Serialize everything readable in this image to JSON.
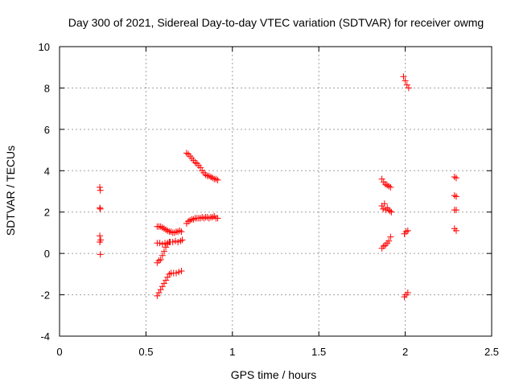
{
  "chart_data": {
    "type": "scatter",
    "title": "Day 300 of 2021, Sidereal Day-to-day VTEC variation (SDTVAR) for receiver owmg",
    "xlabel": "GPS time / hours",
    "ylabel": "SDTVAR / TECUs",
    "xlim": [
      0,
      2.5
    ],
    "ylim": [
      -4,
      10
    ],
    "xticks": [
      0,
      0.5,
      1,
      1.5,
      2,
      2.5
    ],
    "xtick_labels": [
      "0",
      "0.5",
      "1",
      "1.5",
      "2",
      "2.5"
    ],
    "yticks": [
      -4,
      -2,
      0,
      2,
      4,
      6,
      8,
      10
    ],
    "ytick_labels": [
      "-4",
      "-2",
      "0",
      "2",
      "4",
      "6",
      "8",
      "10"
    ],
    "grid": true,
    "marker": "+",
    "series": [
      {
        "name": "SDTVAR",
        "color": "#ff0000",
        "points": [
          [
            0.233,
            3.2
          ],
          [
            0.236,
            3.05
          ],
          [
            0.233,
            2.2
          ],
          [
            0.236,
            2.15
          ],
          [
            0.233,
            0.85
          ],
          [
            0.238,
            0.65
          ],
          [
            0.233,
            0.55
          ],
          [
            0.236,
            -0.05
          ],
          [
            0.565,
            1.3
          ],
          [
            0.575,
            1.3
          ],
          [
            0.585,
            1.3
          ],
          [
            0.595,
            1.25
          ],
          [
            0.605,
            1.2
          ],
          [
            0.615,
            1.15
          ],
          [
            0.625,
            1.1
          ],
          [
            0.635,
            1.05
          ],
          [
            0.645,
            1.05
          ],
          [
            0.655,
            1.0
          ],
          [
            0.665,
            1.0
          ],
          [
            0.675,
            1.05
          ],
          [
            0.685,
            1.05
          ],
          [
            0.695,
            1.1
          ],
          [
            0.705,
            1.05
          ],
          [
            0.565,
            0.5
          ],
          [
            0.58,
            0.5
          ],
          [
            0.595,
            0.45
          ],
          [
            0.61,
            0.5
          ],
          [
            0.625,
            0.5
          ],
          [
            0.64,
            0.55
          ],
          [
            0.655,
            0.55
          ],
          [
            0.67,
            0.6
          ],
          [
            0.685,
            0.55
          ],
          [
            0.7,
            0.6
          ],
          [
            0.71,
            0.65
          ],
          [
            0.565,
            -0.45
          ],
          [
            0.575,
            -0.35
          ],
          [
            0.585,
            -0.3
          ],
          [
            0.595,
            -0.1
          ],
          [
            0.605,
            0.1
          ],
          [
            0.615,
            0.3
          ],
          [
            0.625,
            0.45
          ],
          [
            0.635,
            0.55
          ],
          [
            0.565,
            -2.05
          ],
          [
            0.575,
            -1.9
          ],
          [
            0.585,
            -1.75
          ],
          [
            0.595,
            -1.6
          ],
          [
            0.605,
            -1.45
          ],
          [
            0.615,
            -1.3
          ],
          [
            0.625,
            -1.15
          ],
          [
            0.635,
            -1.0
          ],
          [
            0.645,
            -0.95
          ],
          [
            0.66,
            -0.95
          ],
          [
            0.675,
            -0.95
          ],
          [
            0.69,
            -0.9
          ],
          [
            0.705,
            -0.85
          ],
          [
            0.735,
            1.45
          ],
          [
            0.745,
            1.55
          ],
          [
            0.755,
            1.6
          ],
          [
            0.765,
            1.65
          ],
          [
            0.775,
            1.65
          ],
          [
            0.785,
            1.7
          ],
          [
            0.795,
            1.7
          ],
          [
            0.805,
            1.7
          ],
          [
            0.815,
            1.7
          ],
          [
            0.825,
            1.75
          ],
          [
            0.835,
            1.7
          ],
          [
            0.845,
            1.75
          ],
          [
            0.855,
            1.75
          ],
          [
            0.865,
            1.7
          ],
          [
            0.875,
            1.75
          ],
          [
            0.885,
            1.75
          ],
          [
            0.895,
            1.8
          ],
          [
            0.905,
            1.7
          ],
          [
            0.915,
            1.7
          ],
          [
            0.735,
            4.85
          ],
          [
            0.745,
            4.8
          ],
          [
            0.755,
            4.7
          ],
          [
            0.765,
            4.6
          ],
          [
            0.775,
            4.5
          ],
          [
            0.785,
            4.4
          ],
          [
            0.795,
            4.35
          ],
          [
            0.805,
            4.25
          ],
          [
            0.815,
            4.15
          ],
          [
            0.825,
            4.0
          ],
          [
            0.835,
            3.9
          ],
          [
            0.845,
            3.8
          ],
          [
            0.855,
            3.75
          ],
          [
            0.865,
            3.75
          ],
          [
            0.875,
            3.7
          ],
          [
            0.885,
            3.65
          ],
          [
            0.895,
            3.6
          ],
          [
            0.905,
            3.6
          ],
          [
            0.915,
            3.55
          ],
          [
            1.865,
            3.6
          ],
          [
            1.875,
            3.45
          ],
          [
            1.885,
            3.35
          ],
          [
            1.895,
            3.3
          ],
          [
            1.905,
            3.25
          ],
          [
            1.915,
            3.2
          ],
          [
            1.865,
            2.3
          ],
          [
            1.872,
            2.15
          ],
          [
            1.88,
            2.4
          ],
          [
            1.888,
            2.1
          ],
          [
            1.896,
            2.2
          ],
          [
            1.904,
            2.1
          ],
          [
            1.912,
            2.05
          ],
          [
            1.92,
            2.0
          ],
          [
            1.865,
            0.25
          ],
          [
            1.875,
            0.35
          ],
          [
            1.885,
            0.4
          ],
          [
            1.895,
            0.5
          ],
          [
            1.905,
            0.6
          ],
          [
            1.915,
            0.8
          ],
          [
            1.99,
            8.55
          ],
          [
            2.0,
            8.35
          ],
          [
            2.01,
            8.15
          ],
          [
            2.02,
            8.0
          ],
          [
            1.995,
            0.95
          ],
          [
            2.005,
            1.05
          ],
          [
            2.015,
            1.1
          ],
          [
            1.995,
            -2.1
          ],
          [
            2.005,
            -2.0
          ],
          [
            2.015,
            -1.9
          ],
          [
            2.285,
            3.7
          ],
          [
            2.295,
            3.65
          ],
          [
            2.285,
            2.8
          ],
          [
            2.295,
            2.75
          ],
          [
            2.285,
            2.1
          ],
          [
            2.295,
            2.1
          ],
          [
            2.285,
            1.2
          ],
          [
            2.295,
            1.1
          ]
        ]
      }
    ]
  }
}
